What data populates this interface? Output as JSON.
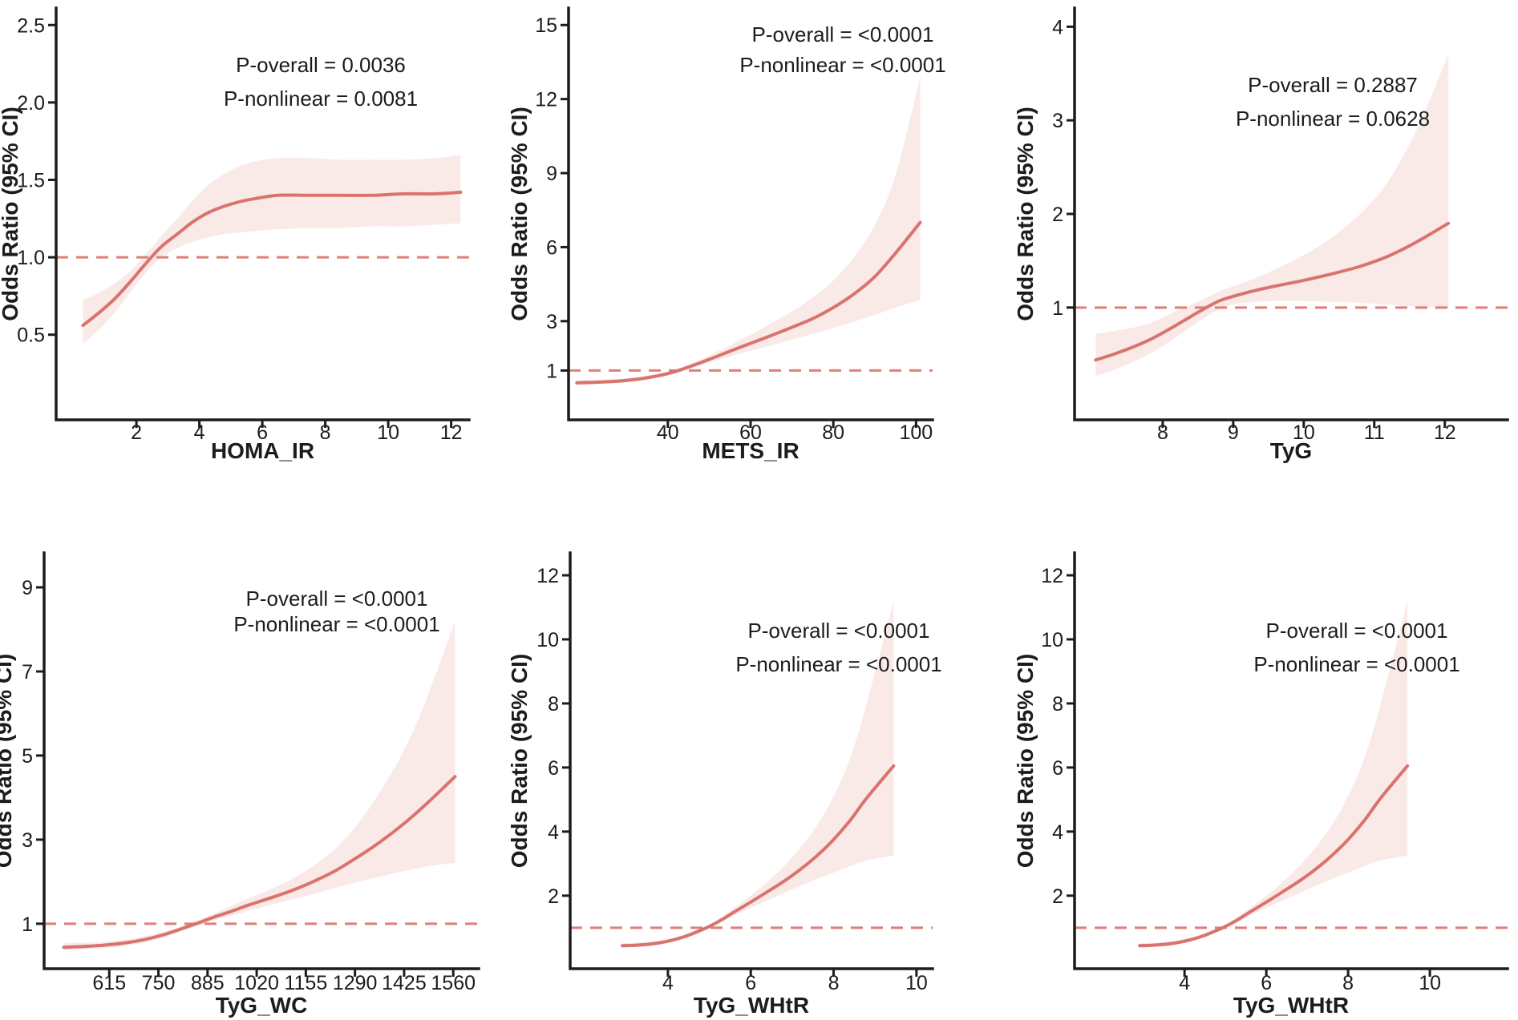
{
  "figure_type": "restricted-cubic-spline-odds-ratio-panels",
  "styles": {
    "curve_color": "#d9736e",
    "band_color": "#f9eae8",
    "dash_color": "#de8078",
    "axis_color": "#1c1c1c",
    "text_color": "#1c1c1c",
    "background": "#ffffff"
  },
  "chart_data": [
    {
      "type": "line",
      "xlabel": "HOMA_IR",
      "ylabel": "Odds Ratio (95% CI)",
      "annotations": [
        "P-overall = 0.0036",
        "P-nonlinear = 0.0081"
      ],
      "ref_line_y": 1,
      "grid": false,
      "legend": "none",
      "xlim": [
        -0.55,
        12.57
      ],
      "ylim": [
        -0.05,
        2.61
      ],
      "x_ticks": [
        2,
        4,
        6,
        8,
        10,
        12
      ],
      "x_tick_labels": [
        "2",
        "4",
        "6",
        "8",
        "10",
        "12"
      ],
      "y_ticks": [
        0.5,
        1.0,
        1.5,
        2.0,
        2.5
      ],
      "y_tick_labels": [
        "0.5",
        "1.0",
        "1.5",
        "2.0",
        "2.5"
      ],
      "x": [
        0.3,
        0.8,
        1.3,
        1.8,
        2.3,
        2.8,
        3.3,
        3.8,
        4.3,
        4.8,
        5.3,
        5.8,
        6.5,
        7.5,
        8.5,
        9.5,
        10.5,
        11.5,
        12.3
      ],
      "odds_ratio": [
        0.56,
        0.64,
        0.73,
        0.84,
        0.96,
        1.07,
        1.15,
        1.23,
        1.29,
        1.33,
        1.36,
        1.38,
        1.4,
        1.4,
        1.4,
        1.4,
        1.41,
        1.41,
        1.42
      ],
      "ci_lower": [
        0.44,
        0.53,
        0.64,
        0.77,
        0.9,
        1.0,
        1.06,
        1.1,
        1.13,
        1.15,
        1.16,
        1.17,
        1.18,
        1.19,
        1.19,
        1.2,
        1.2,
        1.21,
        1.22
      ],
      "ci_upper": [
        0.72,
        0.77,
        0.83,
        0.91,
        1.02,
        1.14,
        1.25,
        1.37,
        1.47,
        1.54,
        1.59,
        1.62,
        1.64,
        1.64,
        1.63,
        1.63,
        1.63,
        1.64,
        1.66
      ]
    },
    {
      "type": "line",
      "xlabel": "METS_IR",
      "ylabel": "Odds Ratio (95% CI)",
      "annotations": [
        "P-overall = <0.0001",
        "P-nonlinear = <0.0001"
      ],
      "ref_line_y": 1,
      "grid": false,
      "legend": "none",
      "xlim": [
        16,
        104
      ],
      "ylim": [
        -1.0,
        15.69
      ],
      "x_ticks": [
        40,
        60,
        80,
        100
      ],
      "x_tick_labels": [
        "40",
        "60",
        "80",
        "100"
      ],
      "y_ticks": [
        1,
        3,
        6,
        9,
        12,
        15
      ],
      "y_tick_labels": [
        "1",
        "3",
        "6",
        "9",
        "12",
        "15"
      ],
      "x": [
        18,
        22,
        26,
        30,
        34,
        38,
        42,
        46,
        50,
        55,
        60,
        65,
        70,
        75,
        80,
        85,
        90,
        95,
        101
      ],
      "odds_ratio": [
        0.5,
        0.52,
        0.55,
        0.6,
        0.68,
        0.8,
        0.97,
        1.2,
        1.45,
        1.78,
        2.1,
        2.42,
        2.75,
        3.1,
        3.55,
        4.1,
        4.8,
        5.75,
        7.0
      ],
      "ci_lower": [
        0.4,
        0.43,
        0.47,
        0.52,
        0.6,
        0.72,
        0.89,
        1.1,
        1.32,
        1.57,
        1.8,
        2.02,
        2.25,
        2.48,
        2.72,
        2.98,
        3.25,
        3.55,
        3.85
      ],
      "ci_upper": [
        0.62,
        0.63,
        0.65,
        0.69,
        0.77,
        0.89,
        1.06,
        1.31,
        1.6,
        2.02,
        2.45,
        2.92,
        3.4,
        3.95,
        4.65,
        5.6,
        6.9,
        8.9,
        12.9
      ]
    },
    {
      "type": "line",
      "xlabel": "TyG",
      "ylabel": "Odds Ratio (95% CI)",
      "annotations": [
        "P-overall = 0.2887",
        "P-nonlinear = 0.0628"
      ],
      "ref_line_y": 1,
      "grid": false,
      "legend": "none",
      "xlim": [
        6.75,
        12.89
      ],
      "ylim": [
        -0.2,
        4.2
      ],
      "x_ticks": [
        8,
        9,
        10,
        11,
        12
      ],
      "x_tick_labels": [
        "8",
        "9",
        "10",
        "11",
        "12"
      ],
      "y_ticks": [
        1,
        2,
        3,
        4
      ],
      "y_tick_labels": [
        "1",
        "2",
        "3",
        "4"
      ],
      "x": [
        7.05,
        7.3,
        7.55,
        7.8,
        8.05,
        8.3,
        8.55,
        8.8,
        9.05,
        9.3,
        9.6,
        10.0,
        10.4,
        10.8,
        11.2,
        11.6,
        12.05
      ],
      "odds_ratio": [
        0.44,
        0.5,
        0.57,
        0.65,
        0.75,
        0.86,
        0.97,
        1.07,
        1.13,
        1.18,
        1.23,
        1.29,
        1.36,
        1.44,
        1.55,
        1.7,
        1.9
      ],
      "ci_lower": [
        0.27,
        0.33,
        0.41,
        0.5,
        0.61,
        0.74,
        0.87,
        0.98,
        1.04,
        1.06,
        1.07,
        1.07,
        1.06,
        1.05,
        1.03,
        1.01,
        1.0
      ],
      "ci_upper": [
        0.72,
        0.75,
        0.78,
        0.83,
        0.91,
        1.0,
        1.08,
        1.17,
        1.24,
        1.31,
        1.41,
        1.56,
        1.75,
        2.0,
        2.35,
        2.9,
        3.7
      ]
    },
    {
      "type": "line",
      "xlabel": "TyG_WC",
      "ylabel": "Odds Ratio (95% CI)",
      "annotations": [
        "P-overall = <0.0001",
        "P-nonlinear = <0.0001"
      ],
      "ref_line_y": 1,
      "grid": false,
      "legend": "none",
      "xlim": [
        436,
        1630
      ],
      "ylim": [
        -0.07,
        9.82
      ],
      "x_ticks": [
        615,
        750,
        885,
        1020,
        1155,
        1290,
        1425,
        1560
      ],
      "x_tick_labels": [
        "615",
        "750",
        "885",
        "1020",
        "1155",
        "1290",
        "1425",
        "1560"
      ],
      "y_ticks": [
        1,
        3,
        5,
        7,
        9
      ],
      "y_tick_labels": [
        "1",
        "3",
        "5",
        "7",
        "9"
      ],
      "x": [
        490,
        545,
        600,
        655,
        710,
        765,
        820,
        860,
        900,
        945,
        1000,
        1060,
        1120,
        1180,
        1240,
        1300,
        1360,
        1420,
        1480,
        1565
      ],
      "odds_ratio": [
        0.44,
        0.46,
        0.49,
        0.54,
        0.62,
        0.74,
        0.9,
        1.02,
        1.15,
        1.28,
        1.45,
        1.62,
        1.8,
        2.02,
        2.28,
        2.6,
        2.95,
        3.35,
        3.8,
        4.5
      ],
      "ci_lower": [
        0.36,
        0.39,
        0.42,
        0.47,
        0.55,
        0.67,
        0.84,
        0.96,
        1.07,
        1.18,
        1.31,
        1.45,
        1.58,
        1.72,
        1.86,
        2.0,
        2.12,
        2.24,
        2.35,
        2.45
      ],
      "ci_upper": [
        0.54,
        0.55,
        0.57,
        0.62,
        0.7,
        0.81,
        0.96,
        1.09,
        1.23,
        1.4,
        1.61,
        1.83,
        2.08,
        2.4,
        2.82,
        3.4,
        4.15,
        5.05,
        6.2,
        8.2
      ]
    },
    {
      "type": "line",
      "xlabel": "TyG_WHtR",
      "ylabel": "Odds Ratio (95% CI)",
      "annotations": [
        "P-overall = <0.0001",
        "P-nonlinear = <0.0001"
      ],
      "ref_line_y": 1,
      "grid": false,
      "legend": "none",
      "xlim": [
        1.64,
        10.39
      ],
      "ylim": [
        -0.28,
        12.7
      ],
      "x_ticks": [
        4,
        6,
        8,
        10
      ],
      "x_tick_labels": [
        "4",
        "6",
        "8",
        "10"
      ],
      "y_ticks": [
        2,
        4,
        6,
        8,
        10,
        12
      ],
      "y_tick_labels": [
        "2",
        "4",
        "6",
        "8",
        "10",
        "12"
      ],
      "x": [
        2.9,
        3.2,
        3.5,
        3.8,
        4.1,
        4.4,
        4.7,
        5.0,
        5.3,
        5.6,
        6.0,
        6.4,
        6.8,
        7.2,
        7.6,
        8.0,
        8.4,
        8.8,
        9.45
      ],
      "odds_ratio": [
        0.44,
        0.45,
        0.48,
        0.53,
        0.61,
        0.72,
        0.87,
        1.04,
        1.25,
        1.49,
        1.8,
        2.12,
        2.45,
        2.82,
        3.25,
        3.75,
        4.35,
        5.05,
        6.05
      ],
      "ci_lower": [
        0.37,
        0.39,
        0.42,
        0.47,
        0.55,
        0.66,
        0.81,
        0.98,
        1.17,
        1.38,
        1.62,
        1.85,
        2.08,
        2.3,
        2.52,
        2.72,
        2.92,
        3.1,
        3.25
      ],
      "ci_upper": [
        0.52,
        0.53,
        0.55,
        0.6,
        0.68,
        0.79,
        0.93,
        1.1,
        1.34,
        1.62,
        2.0,
        2.43,
        2.92,
        3.5,
        4.2,
        5.1,
        6.3,
        8.0,
        11.2
      ]
    },
    {
      "type": "line",
      "xlabel": "TyG_WHtR",
      "ylabel": "Odds Ratio (95% CI)",
      "annotations": [
        "P-overall = <0.0001",
        "P-nonlinear = <0.0001"
      ],
      "ref_line_y": 1,
      "grid": false,
      "legend": "none",
      "xlim": [
        1.31,
        11.9
      ],
      "ylim": [
        -0.28,
        12.7
      ],
      "x_ticks": [
        4,
        6,
        8,
        10
      ],
      "x_tick_labels": [
        "4",
        "6",
        "8",
        "10"
      ],
      "y_ticks": [
        2,
        4,
        6,
        8,
        10,
        12
      ],
      "y_tick_labels": [
        "2",
        "4",
        "6",
        "8",
        "10",
        "12"
      ],
      "x": [
        2.9,
        3.2,
        3.5,
        3.8,
        4.1,
        4.4,
        4.7,
        5.0,
        5.3,
        5.6,
        6.0,
        6.4,
        6.8,
        7.2,
        7.6,
        8.0,
        8.4,
        8.8,
        9.45
      ],
      "odds_ratio": [
        0.44,
        0.45,
        0.48,
        0.53,
        0.61,
        0.72,
        0.87,
        1.04,
        1.25,
        1.49,
        1.8,
        2.12,
        2.45,
        2.82,
        3.25,
        3.75,
        4.35,
        5.05,
        6.05
      ],
      "ci_lower": [
        0.37,
        0.39,
        0.42,
        0.47,
        0.55,
        0.66,
        0.81,
        0.98,
        1.17,
        1.38,
        1.62,
        1.85,
        2.08,
        2.3,
        2.52,
        2.72,
        2.92,
        3.1,
        3.25
      ],
      "ci_upper": [
        0.52,
        0.53,
        0.55,
        0.6,
        0.68,
        0.79,
        0.93,
        1.1,
        1.34,
        1.62,
        2.0,
        2.43,
        2.92,
        3.5,
        4.2,
        5.1,
        6.3,
        8.0,
        11.2
      ]
    }
  ]
}
